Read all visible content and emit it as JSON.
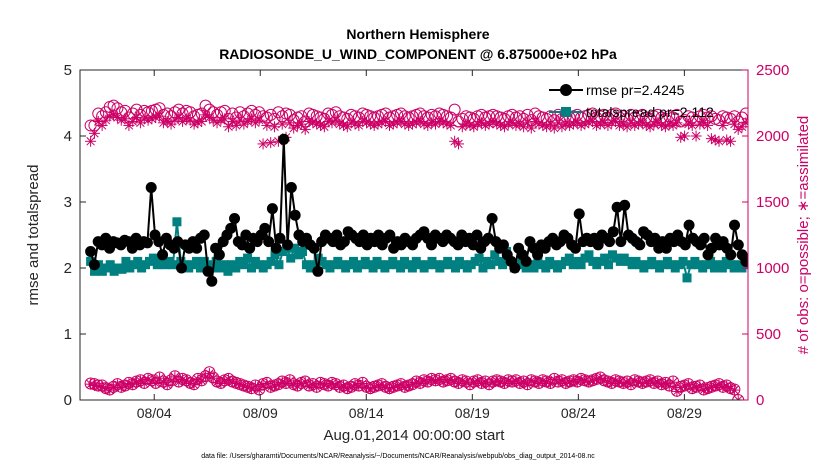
{
  "chart_data": {
    "type": "line",
    "title_line1": "Northern Hemisphere",
    "title_line2": "RADIOSONDE_U_WIND_COMPONENT @ 6.875000e+02 hPa",
    "xlabel": "Aug.01,2014 00:00:00 start",
    "ylabel_left": "rmse and totalspread",
    "ylabel_right": "# of obs: o=possible; ∗=assimilated",
    "footer": "data file: /Users/gharamti/Documents/NCAR/Reanalysis/~/Documents/NCAR/Reanalysis/webpub/obs_diag_output_2014-08.nc",
    "xlim": [
      0.5,
      32.0
    ],
    "ylim_left": [
      0,
      5
    ],
    "ylim_right": [
      0,
      2500
    ],
    "x_ticks": [
      4,
      9,
      14,
      19,
      24,
      29
    ],
    "x_tick_labels": [
      "08/04",
      "08/09",
      "08/14",
      "08/19",
      "08/24",
      "08/29"
    ],
    "y_left_ticks": [
      0,
      1,
      2,
      3,
      4,
      5
    ],
    "y_left_tick_labels": [
      "0",
      "1",
      "2",
      "3",
      "4",
      "5"
    ],
    "y_right_ticks": [
      0,
      500,
      1000,
      1500,
      2000,
      2500
    ],
    "y_right_tick_labels": [
      "0",
      "500",
      "1000",
      "1500",
      "2000",
      "2500"
    ],
    "legend_position": "top-right",
    "colors": {
      "rmse": "#000000",
      "totalspread": "#008080",
      "obs": "#cc0066",
      "axis_right": "#cc0066"
    },
    "legend": [
      {
        "name": "rmse pr=2.4245",
        "key": "rmse"
      },
      {
        "name": "totalspread pr=2.112",
        "key": "totalspread"
      }
    ],
    "series": {
      "rmse": [
        2.25,
        2.05,
        2.4,
        2.35,
        2.45,
        2.3,
        2.4,
        2.38,
        2.35,
        2.42,
        2.4,
        2.3,
        2.45,
        2.35,
        2.4,
        2.38,
        3.22,
        2.5,
        2.4,
        2.2,
        2.45,
        2.35,
        2.3,
        2.4,
        2.0,
        2.35,
        2.3,
        2.4,
        2.3,
        2.45,
        2.5,
        1.95,
        1.8,
        2.3,
        2.2,
        2.4,
        2.5,
        2.6,
        2.75,
        2.4,
        2.35,
        2.5,
        2.3,
        2.45,
        2.4,
        2.5,
        2.6,
        2.4,
        2.9,
        2.3,
        2.45,
        3.95,
        2.35,
        3.22,
        2.8,
        2.5,
        2.4,
        2.45,
        2.35,
        2.3,
        1.95,
        2.4,
        2.5,
        2.45,
        2.4,
        2.5,
        2.35,
        2.4,
        2.55,
        2.5,
        2.45,
        2.4,
        2.5,
        2.35,
        2.45,
        2.4,
        2.5,
        2.35,
        2.45,
        2.5,
        2.3,
        2.4,
        2.35,
        2.45,
        2.4,
        2.35,
        2.45,
        2.5,
        2.55,
        2.45,
        2.35,
        2.5,
        2.45,
        2.4,
        2.5,
        2.45,
        2.4,
        2.35,
        2.5,
        2.4,
        2.45,
        2.35,
        2.5,
        2.3,
        2.4,
        2.45,
        2.75,
        2.4,
        2.3,
        2.35,
        2.2,
        2.1,
        2.0,
        2.3,
        2.2,
        2.1,
        2.4,
        2.3,
        2.2,
        2.35,
        2.3,
        2.4,
        2.45,
        2.35,
        2.4,
        2.5,
        2.45,
        2.35,
        2.3,
        2.82,
        2.4,
        2.45,
        2.4,
        2.45,
        2.35,
        2.5,
        2.45,
        2.4,
        2.55,
        2.92,
        2.4,
        2.95,
        2.5,
        2.45,
        2.4,
        2.35,
        2.55,
        2.5,
        2.4,
        2.45,
        2.3,
        2.4,
        2.3,
        2.45,
        2.4,
        2.5,
        2.4,
        2.35,
        2.65,
        2.45,
        2.4,
        2.35,
        2.45,
        2.2,
        2.3,
        2.45,
        2.35,
        2.4,
        2.3,
        2.2,
        2.65,
        2.35,
        2.2,
        2.1
      ],
      "totalspread": [
        2.1,
        1.95,
        2.05,
        1.95,
        2.0,
        2.05,
        1.95,
        2.0,
        1.98,
        2.1,
        2.0,
        2.05,
        2.1,
        2.0,
        2.05,
        2.1,
        2.15,
        2.05,
        2.1,
        2.05,
        2.1,
        2.05,
        2.7,
        2.1,
        2.05,
        2.0,
        2.05,
        2.1,
        2.0,
        2.1,
        2.05,
        2.0,
        2.1,
        2.0,
        2.05,
        1.95,
        2.05,
        2.0,
        2.1,
        2.05,
        2.15,
        2.0,
        2.1,
        2.05,
        2.0,
        2.05,
        2.1,
        2.2,
        2.05,
        2.25,
        2.3,
        2.15,
        2.3,
        2.2,
        2.25,
        2.05,
        2.0,
        2.05,
        2.15,
        2.1,
        2.05,
        2.0,
        2.05,
        2.1,
        2.05,
        2.0,
        2.05,
        2.1,
        2.0,
        2.05,
        2.1,
        2.05,
        2.0,
        2.1,
        2.05,
        2.0,
        2.05,
        2.1,
        2.05,
        2.0,
        2.1,
        2.05,
        2.0,
        2.1,
        2.05,
        2.0,
        2.05,
        2.1,
        2.05,
        2.0,
        2.05,
        2.1,
        2.05,
        2.0,
        2.1,
        2.05,
        2.0,
        2.05,
        2.1,
        2.15,
        2.0,
        2.1,
        2.05,
        2.2,
        2.1,
        2.05,
        2.25,
        2.1,
        2.0,
        2.05,
        2.1,
        2.0,
        2.05,
        2.0,
        2.1,
        2.05,
        2.0,
        2.1,
        2.05,
        2.0,
        2.05,
        2.1,
        2.15,
        2.05,
        2.1,
        2.05,
        2.15,
        2.2,
        2.1,
        2.05,
        2.1,
        2.15,
        2.05,
        2.2,
        2.15,
        2.1,
        2.15,
        2.1,
        2.05,
        2.1,
        2.05,
        2.0,
        2.05,
        2.1,
        2.05,
        2.0,
        2.05,
        2.1,
        2.05,
        2.0,
        2.05,
        2.1,
        1.85,
        2.05,
        2.1,
        2.05,
        2.0,
        2.05,
        2.1,
        2.0,
        2.05,
        2.0,
        2.1,
        2.05,
        2.0,
        2.05,
        2.0,
        2.05
      ],
      "possible": [
        2080,
        2080,
        2170,
        2150,
        2180,
        2220,
        2230,
        2210,
        2180,
        2190,
        2140,
        2170,
        2200,
        2160,
        2190,
        2180,
        2190,
        2200,
        2210,
        2160,
        2170,
        2150,
        2180,
        2200,
        2170,
        2190,
        2180,
        2150,
        2160,
        2170,
        2230,
        2200,
        2180,
        2160,
        2180,
        2190,
        2130,
        2170,
        2140,
        2180,
        2150,
        2170,
        2190,
        2160,
        2180,
        2150,
        2140,
        2160,
        2130,
        2180,
        2150,
        2170,
        2160,
        2120,
        2140,
        2150,
        2110,
        2170,
        2160,
        2150,
        2140,
        2130,
        2170,
        2160,
        2180,
        2150,
        2140,
        2130,
        2160,
        2150,
        2140,
        2170,
        2160,
        2150,
        2140,
        2150,
        2160,
        2170,
        2140,
        2150,
        2160,
        2170,
        2150,
        2140,
        2150,
        2160,
        2170,
        2150,
        2140,
        2160,
        2150,
        2170,
        2160,
        2150,
        2140,
        2200,
        2110,
        2130,
        2150,
        2140,
        2130,
        2150,
        2160,
        2140,
        2150,
        2160,
        2150,
        2140,
        2130,
        2150,
        2160,
        2140,
        2150,
        2130,
        2160,
        2120,
        2170,
        2150,
        2140,
        2130,
        2150,
        2120,
        2160,
        2130,
        2150,
        2140,
        2150,
        2160,
        2140,
        2150,
        2160,
        2170,
        2140,
        2150,
        2160,
        2140,
        2160,
        2170,
        2140,
        2150,
        2130,
        2160,
        2140,
        2150,
        2160,
        2140,
        2130,
        2150,
        2160,
        2140,
        2130,
        2150,
        2140,
        2160,
        2110,
        2120,
        2150,
        2140,
        2120,
        2150,
        2160,
        2140,
        2150,
        2130,
        2120,
        2150,
        2140,
        2130,
        2150,
        2110,
        2140,
        2170
      ],
      "assimilated": [
        1960,
        2020,
        2110,
        2080,
        2120,
        2150,
        2160,
        2140,
        2120,
        2130,
        2080,
        2110,
        2140,
        2100,
        2130,
        2120,
        2130,
        2140,
        2150,
        2100,
        2110,
        2090,
        2120,
        2140,
        2110,
        2130,
        2120,
        2090,
        2100,
        2110,
        2160,
        2140,
        2120,
        2100,
        2120,
        2130,
        2070,
        2110,
        2080,
        2120,
        2090,
        2110,
        2130,
        2100,
        2120,
        1940,
        2080,
        1950,
        2070,
        1960,
        2090,
        1990,
        2100,
        2060,
        2080,
        2090,
        2050,
        2110,
        2100,
        2090,
        2080,
        2070,
        2110,
        2100,
        2120,
        2090,
        2080,
        2070,
        2100,
        2090,
        2080,
        2110,
        2100,
        2090,
        2080,
        2090,
        2100,
        2110,
        2080,
        2090,
        2100,
        2110,
        2090,
        2080,
        2090,
        2100,
        2110,
        2090,
        2080,
        2100,
        2090,
        2110,
        2100,
        2090,
        2080,
        1960,
        1940,
        2070,
        2090,
        2080,
        2070,
        2090,
        2100,
        2080,
        2090,
        2100,
        2090,
        2080,
        2070,
        2090,
        2100,
        2080,
        2090,
        2070,
        2100,
        2060,
        2110,
        2090,
        2080,
        2070,
        2090,
        2060,
        2100,
        2070,
        2090,
        2080,
        2090,
        2100,
        2080,
        2090,
        2100,
        2110,
        2080,
        2090,
        2100,
        2080,
        2100,
        2110,
        2080,
        2090,
        2070,
        2100,
        2080,
        2090,
        2100,
        2080,
        2070,
        2090,
        2100,
        2080,
        2070,
        2090,
        2080,
        2100,
        1990,
        2000,
        2090,
        2080,
        2000,
        2090,
        2100,
        2080,
        1980,
        1970,
        1960,
        2080,
        1970,
        1960,
        2090,
        2050,
        2070,
        2100
      ],
      "possible_low": [
        125,
        120,
        110,
        110,
        90,
        80,
        100,
        120,
        100,
        110,
        130,
        120,
        140,
        150,
        130,
        160,
        150,
        130,
        170,
        140,
        120,
        150,
        180,
        140,
        160,
        150,
        130,
        120,
        160,
        150,
        180,
        210,
        170,
        140,
        130,
        150,
        160,
        140,
        130,
        120,
        110,
        100,
        90,
        110,
        80,
        120,
        130,
        100,
        110,
        120,
        140,
        130,
        150,
        120,
        110,
        130,
        140,
        110,
        120,
        100,
        130,
        120,
        110,
        130,
        120,
        100,
        110,
        90,
        100,
        120,
        110,
        130,
        100,
        90,
        100,
        110,
        120,
        100,
        90,
        100,
        110,
        120,
        100,
        110,
        120,
        140,
        130,
        150,
        140,
        160,
        150,
        160,
        140,
        150,
        160,
        140,
        130,
        150,
        140,
        120,
        140,
        150,
        130,
        140,
        120,
        140,
        150,
        140,
        130,
        150,
        140,
        150,
        130,
        140,
        120,
        150,
        140,
        130,
        150,
        140,
        130,
        160,
        140,
        150,
        130,
        140,
        150,
        140,
        160,
        150,
        140,
        150,
        160,
        170,
        150,
        140,
        130,
        150,
        140,
        130,
        140,
        120,
        150,
        140,
        130,
        140,
        150,
        130,
        140,
        120,
        130,
        110,
        140,
        70,
        100,
        110,
        120,
        90,
        100,
        110,
        80,
        90,
        100,
        110,
        120,
        100,
        110,
        90,
        80,
        0
      ],
      "assimilated_low": [
        120,
        110,
        105,
        100,
        85,
        75,
        95,
        115,
        95,
        105,
        125,
        115,
        135,
        145,
        125,
        155,
        145,
        125,
        165,
        135,
        115,
        145,
        175,
        135,
        155,
        145,
        125,
        115,
        155,
        145,
        175,
        200,
        165,
        135,
        125,
        145,
        155,
        135,
        125,
        115,
        105,
        95,
        85,
        105,
        75,
        115,
        125,
        95,
        105,
        115,
        135,
        125,
        145,
        115,
        105,
        125,
        135,
        105,
        115,
        95,
        125,
        115,
        105,
        125,
        115,
        95,
        105,
        85,
        95,
        115,
        105,
        125,
        95,
        85,
        95,
        105,
        115,
        95,
        85,
        95,
        105,
        115,
        95,
        105,
        115,
        135,
        125,
        145,
        135,
        155,
        145,
        155,
        135,
        145,
        155,
        135,
        125,
        145,
        135,
        115,
        135,
        145,
        125,
        135,
        115,
        135,
        145,
        135,
        125,
        145,
        135,
        145,
        125,
        135,
        115,
        145,
        135,
        125,
        145,
        135,
        125,
        155,
        135,
        145,
        125,
        135,
        145,
        135,
        155,
        145,
        135,
        145,
        155,
        165,
        145,
        135,
        125,
        145,
        135,
        125,
        135,
        115,
        145,
        135,
        125,
        135,
        145,
        125,
        135,
        115,
        125,
        105,
        135,
        65,
        95,
        105,
        115,
        85,
        95,
        105,
        75,
        85,
        95,
        105,
        115,
        95,
        105,
        85,
        75,
        0
      ]
    }
  }
}
